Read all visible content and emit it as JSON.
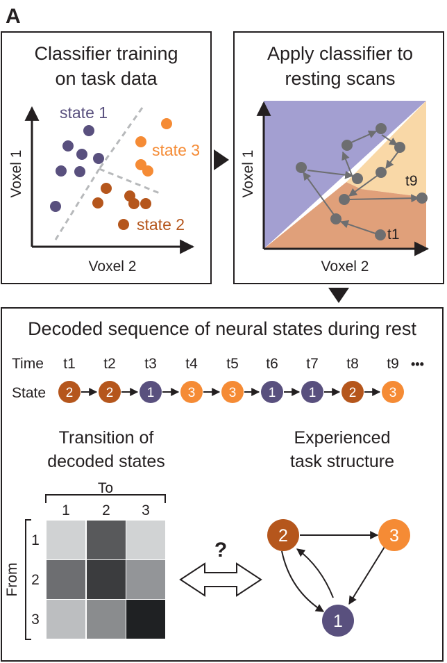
{
  "panel_letter": "A",
  "colors": {
    "state1": "#59507e",
    "state2": "#b5561c",
    "state3": "#f58b35",
    "region1": "#a39fd1",
    "region2": "#e0a07a",
    "region3": "#f9d8a7",
    "point_gray": "#6d6e70",
    "ink": "#231f20"
  },
  "training": {
    "title_line1": "Classifier training",
    "title_line2": "on task data",
    "ylabel": "Voxel 1",
    "xlabel": "Voxel 2",
    "labels": {
      "state1": "state 1",
      "state2": "state 2",
      "state3": "state 3"
    }
  },
  "apply": {
    "title_line1": "Apply classifier to",
    "title_line2": "resting scans",
    "ylabel": "Voxel 1",
    "xlabel": "Voxel 2",
    "start_label": "t1",
    "end_label": "t9"
  },
  "sequence": {
    "title": "Decoded sequence of neural states during rest",
    "time_label": "Time",
    "state_label": "State",
    "times": [
      "t1",
      "t2",
      "t3",
      "t4",
      "t5",
      "t6",
      "t7",
      "t8",
      "t9"
    ],
    "states": [
      "2",
      "2",
      "1",
      "3",
      "3",
      "1",
      "1",
      "2",
      "3"
    ],
    "ellipsis": "•••"
  },
  "transition": {
    "title_line1": "Transition of",
    "title_line2": "decoded states",
    "to_label": "To",
    "from_label": "From",
    "col_labels": [
      "1",
      "2",
      "3"
    ],
    "row_labels": [
      "1",
      "2",
      "3"
    ],
    "matrix_colors": [
      [
        "#d0d2d3",
        "#58595b",
        "#d1d3d4"
      ],
      [
        "#6d6e71",
        "#3b3c3e",
        "#939598"
      ],
      [
        "#bcbec0",
        "#8a8c8e",
        "#1f2123"
      ]
    ]
  },
  "question_mark": "?",
  "structure": {
    "title_line1": "Experienced",
    "title_line2": "task structure",
    "nodes": [
      "2",
      "3",
      "1"
    ]
  }
}
